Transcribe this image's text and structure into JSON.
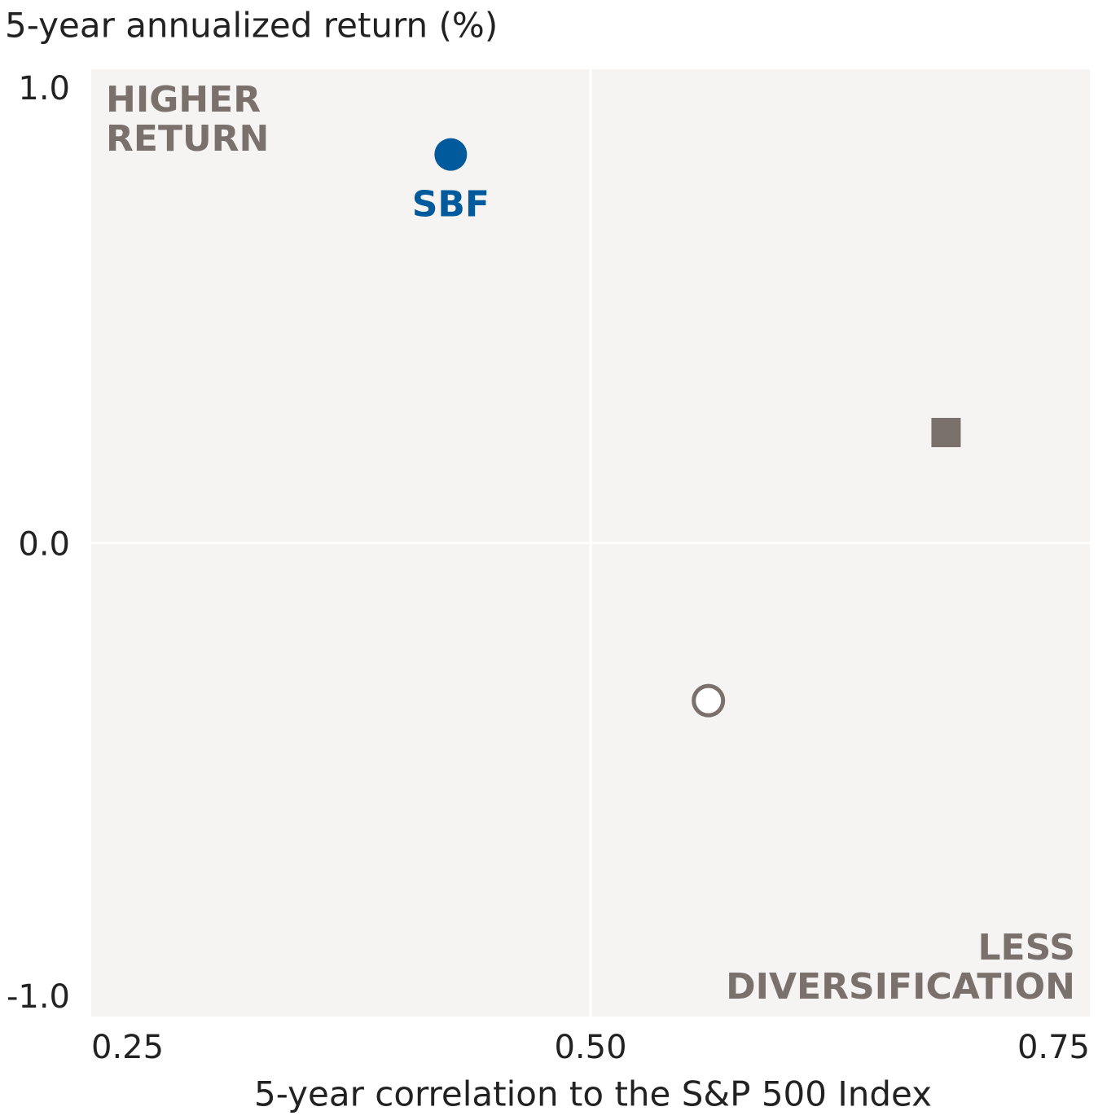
{
  "chart_data": {
    "type": "scatter",
    "y_label": "5-year annualized return (%)",
    "x_label": "5-year correlation to the S&P 500 Index",
    "xlim": [
      0.25,
      0.75
    ],
    "ylim": [
      -1.0,
      1.0
    ],
    "xticks": [
      {
        "value": 0.25,
        "label": "0.25"
      },
      {
        "value": 0.5,
        "label": "0.50"
      },
      {
        "value": 0.75,
        "label": "0.75"
      }
    ],
    "yticks": [
      {
        "value": 1.0,
        "label": "1.0"
      },
      {
        "value": 0.0,
        "label": "0.0"
      },
      {
        "value": -1.0,
        "label": "-1.0"
      }
    ],
    "grid": true,
    "quadrant_labels": {
      "top_left": [
        "HIGHER",
        "RETURN"
      ],
      "bottom_right": [
        "LESS",
        "DIVERSIFICATION"
      ]
    },
    "series": [
      {
        "name": "SBF",
        "color": "#005a9c",
        "marker": "circle",
        "x": [
          0.43
        ],
        "values": [
          0.82
        ]
      },
      {
        "color": "#7a716d",
        "marker": "square",
        "x": [
          0.678
        ],
        "values": [
          0.233
        ]
      },
      {
        "color": "#7a716d",
        "marker": "open-circle",
        "x": [
          0.559
        ],
        "values": [
          -0.333
        ]
      }
    ]
  }
}
